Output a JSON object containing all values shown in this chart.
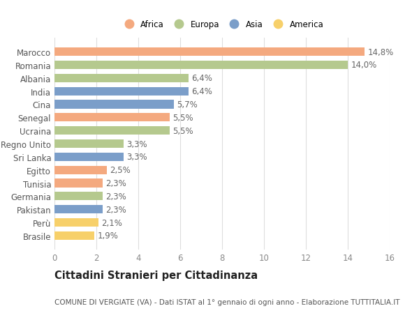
{
  "countries": [
    "Marocco",
    "Romania",
    "Albania",
    "India",
    "Cina",
    "Senegal",
    "Ucraina",
    "Regno Unito",
    "Sri Lanka",
    "Egitto",
    "Tunisia",
    "Germania",
    "Pakistan",
    "Perù",
    "Brasile"
  ],
  "values": [
    14.8,
    14.0,
    6.4,
    6.4,
    5.7,
    5.5,
    5.5,
    3.3,
    3.3,
    2.5,
    2.3,
    2.3,
    2.3,
    2.1,
    1.9
  ],
  "labels": [
    "14,8%",
    "14,0%",
    "6,4%",
    "6,4%",
    "5,7%",
    "5,5%",
    "5,5%",
    "3,3%",
    "3,3%",
    "2,5%",
    "2,3%",
    "2,3%",
    "2,3%",
    "2,1%",
    "1,9%"
  ],
  "continents": [
    "Africa",
    "Europa",
    "Europa",
    "Asia",
    "Asia",
    "Africa",
    "Europa",
    "Europa",
    "Asia",
    "Africa",
    "Africa",
    "Europa",
    "Asia",
    "America",
    "America"
  ],
  "colors": {
    "Africa": "#F4A97F",
    "Europa": "#B5C98E",
    "Asia": "#7B9EC9",
    "America": "#F7D06A"
  },
  "legend_order": [
    "Africa",
    "Europa",
    "Asia",
    "America"
  ],
  "xlim": [
    0,
    16
  ],
  "xticks": [
    0,
    2,
    4,
    6,
    8,
    10,
    12,
    14,
    16
  ],
  "title": "Cittadini Stranieri per Cittadinanza",
  "subtitle": "COMUNE DI VERGIATE (VA) - Dati ISTAT al 1° gennaio di ogni anno - Elaborazione TUTTITALIA.IT",
  "background_color": "#ffffff",
  "bar_height": 0.65,
  "grid_color": "#dddddd",
  "label_fontsize": 8.5,
  "tick_fontsize": 8.5,
  "title_fontsize": 10.5,
  "subtitle_fontsize": 7.5
}
